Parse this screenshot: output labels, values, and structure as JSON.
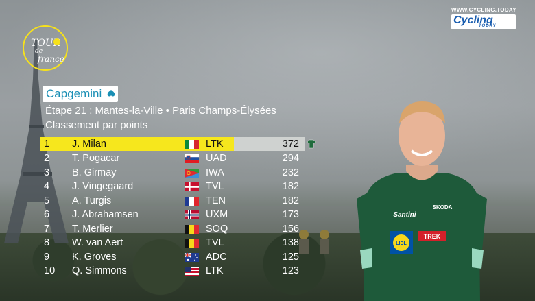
{
  "site": {
    "url": "WWW.CYCLING.TODAY",
    "logo_main": "Cycling",
    "logo_sub": "TODAY"
  },
  "race_logo": {
    "line1": "TOUR",
    "line2": "de",
    "line3": "france"
  },
  "sponsor": {
    "name": "Capgemini"
  },
  "stage_line": "Étape 21 : Mantes-la-Ville • Paris Champs-Élysées",
  "classification_title": "Classement par points",
  "standings": [
    {
      "rank": "1",
      "name": "J. Milan",
      "team": "LTK",
      "points": "372",
      "flag": "italy"
    },
    {
      "rank": "2",
      "name": "T. Pogacar",
      "team": "UAD",
      "points": "294",
      "flag": "slovenia"
    },
    {
      "rank": "3",
      "name": "B. Girmay",
      "team": "IWA",
      "points": "232",
      "flag": "eritrea"
    },
    {
      "rank": "4",
      "name": "J. Vingegaard",
      "team": "TVL",
      "points": "182",
      "flag": "denmark"
    },
    {
      "rank": "5",
      "name": "A. Turgis",
      "team": "TEN",
      "points": "182",
      "flag": "france"
    },
    {
      "rank": "6",
      "name": "J. Abrahamsen",
      "team": "UXM",
      "points": "173",
      "flag": "norway"
    },
    {
      "rank": "7",
      "name": "T. Merlier",
      "team": "SOQ",
      "points": "156",
      "flag": "belgium"
    },
    {
      "rank": "8",
      "name": "W. van Aert",
      "team": "TVL",
      "points": "138",
      "flag": "belgium"
    },
    {
      "rank": "9",
      "name": "K. Groves",
      "team": "ADC",
      "points": "125",
      "flag": "australia"
    },
    {
      "rank": "10",
      "name": "Q. Simmons",
      "team": "LTK",
      "points": "123",
      "flag": "usa"
    }
  ],
  "leader_jersey_icon": "green-jersey-icon",
  "colors": {
    "leader_highlight": "#f6e71d",
    "points_box": "#cfd2d0",
    "green_jersey": "#1f6b3c",
    "logo_ring": "#f7e21a"
  },
  "rider_jersey_texts": {
    "sponsor1": "SKODA",
    "sponsor2": "Santini",
    "sponsor3": "LIDL",
    "sponsor4": "TREK"
  }
}
